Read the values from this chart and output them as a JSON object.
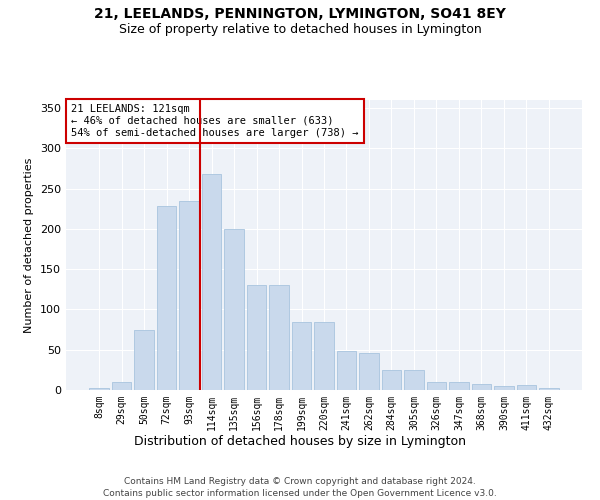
{
  "title": "21, LEELANDS, PENNINGTON, LYMINGTON, SO41 8EY",
  "subtitle": "Size of property relative to detached houses in Lymington",
  "xlabel": "Distribution of detached houses by size in Lymington",
  "ylabel": "Number of detached properties",
  "bar_color": "#c9d9ec",
  "bar_edge_color": "#a8c4de",
  "categories": [
    "8sqm",
    "29sqm",
    "50sqm",
    "72sqm",
    "93sqm",
    "114sqm",
    "135sqm",
    "156sqm",
    "178sqm",
    "199sqm",
    "220sqm",
    "241sqm",
    "262sqm",
    "284sqm",
    "305sqm",
    "326sqm",
    "347sqm",
    "368sqm",
    "390sqm",
    "411sqm",
    "432sqm"
  ],
  "values": [
    2,
    10,
    75,
    228,
    235,
    268,
    200,
    130,
    130,
    85,
    85,
    48,
    46,
    25,
    25,
    10,
    10,
    8,
    5,
    6,
    3
  ],
  "vline_x": 4.5,
  "vline_color": "#cc0000",
  "annotation_text": "21 LEELANDS: 121sqm\n← 46% of detached houses are smaller (633)\n54% of semi-detached houses are larger (738) →",
  "annotation_box_color": "#ffffff",
  "annotation_box_edge": "#cc0000",
  "ylim": [
    0,
    360
  ],
  "yticks": [
    0,
    50,
    100,
    150,
    200,
    250,
    300,
    350
  ],
  "footer": "Contains HM Land Registry data © Crown copyright and database right 2024.\nContains public sector information licensed under the Open Government Licence v3.0.",
  "bg_color": "#eef2f8",
  "fig_color": "#ffffff"
}
